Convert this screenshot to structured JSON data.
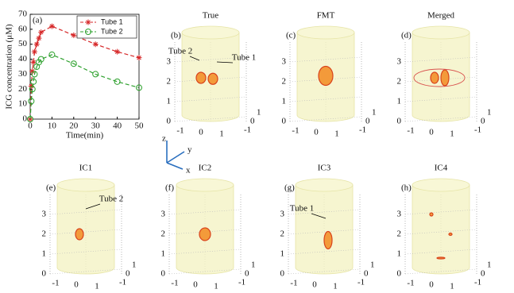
{
  "chart_data": {
    "type": "line",
    "panel_label": "(a)",
    "xlabel": "Time(min)",
    "ylabel": "ICG concentration (μM)",
    "x": [
      0,
      0.5,
      1,
      1.5,
      2,
      3,
      4,
      5,
      10,
      20,
      30,
      40,
      50
    ],
    "series": [
      {
        "name": "Tube 1",
        "color": "#d62728",
        "marker": "star",
        "values": [
          0,
          22,
          32,
          38,
          45,
          50,
          54,
          58,
          62,
          56,
          50,
          45,
          41
        ]
      },
      {
        "name": "Tube 2",
        "color": "#2ca02c",
        "marker": "circle",
        "values": [
          0,
          12,
          20,
          25,
          30,
          35,
          38,
          40,
          43,
          37,
          30,
          25,
          21
        ]
      }
    ],
    "xlim": [
      0,
      50
    ],
    "ylim": [
      0,
      70
    ],
    "xticks": [
      0,
      10,
      20,
      30,
      40,
      50
    ],
    "yticks": [
      0,
      10,
      20,
      30,
      40,
      50,
      60,
      70
    ],
    "legend": "upper right"
  },
  "axis_key": {
    "z": "z",
    "y": "y",
    "x": "x"
  },
  "panel_ticks": {
    "z": [
      0,
      1,
      2,
      3
    ],
    "x": [
      -1,
      0,
      1
    ],
    "y": [
      -1,
      0,
      1
    ]
  },
  "panels": [
    {
      "label": "(b)",
      "title": "True",
      "annotations": [
        "Tube 2",
        "Tube 1"
      ]
    },
    {
      "label": "(c)",
      "title": "FMT",
      "annotations": []
    },
    {
      "label": "(d)",
      "title": "Merged",
      "annotations": []
    },
    {
      "label": "(e)",
      "title": "IC1",
      "annotations": [
        "Tube 2"
      ]
    },
    {
      "label": "(f)",
      "title": "IC2",
      "annotations": []
    },
    {
      "label": "(g)",
      "title": "IC3",
      "annotations": [
        "Tube 1"
      ]
    },
    {
      "label": "(h)",
      "title": "IC4",
      "annotations": []
    }
  ]
}
